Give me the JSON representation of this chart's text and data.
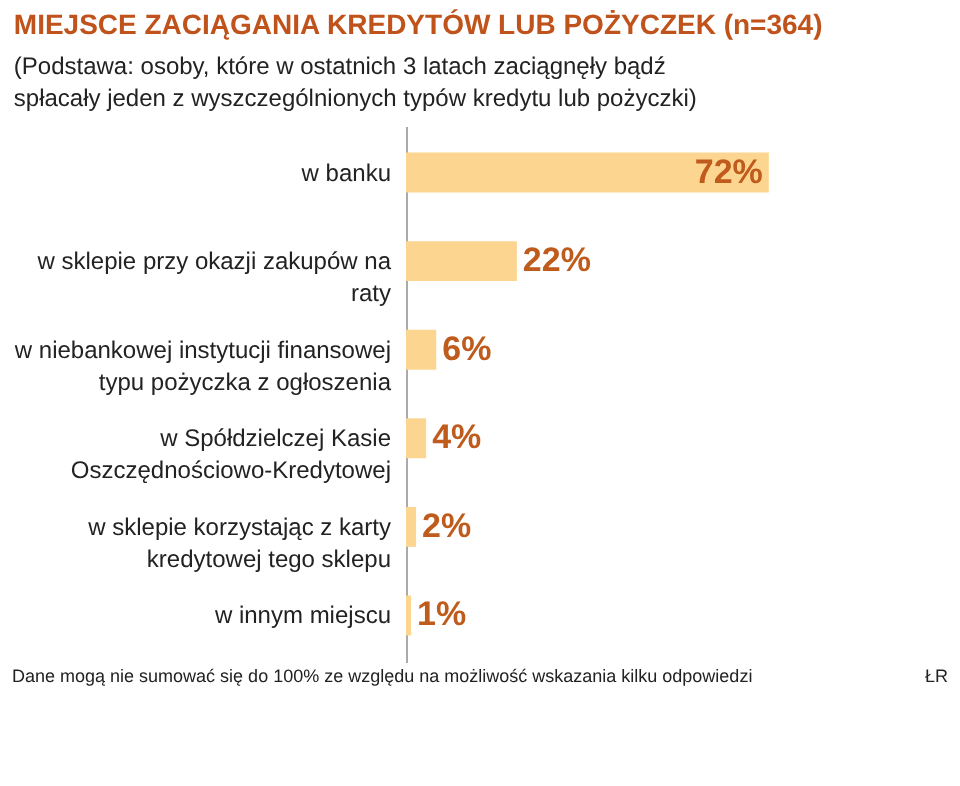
{
  "chart_data": {
    "type": "bar",
    "orientation": "horizontal",
    "title": "MIEJSCE ZACIĄGANIA KREDYTÓW LUB POŻYCZEK (n=364)",
    "subtitle": "(Podstawa: osoby, które w ostatnich 3 latach zaciągnęły bądź spłacały jeden z wyszczególnionych typów kredytu lub pożyczki)",
    "categories": [
      "w banku",
      "w sklepie przy okazji zakupów na raty",
      "w niebankowej instytucji finansowej typu pożyczka z ogłoszenia",
      "w Spółdzielczej Kasie Oszczędnościowo-Kredytowej",
      "w sklepie korzystając z karty kredytowej tego sklepu",
      "w innym miejscu"
    ],
    "values": [
      72,
      22,
      6,
      4,
      2,
      1
    ],
    "color": "#fcd590",
    "value_labels": [
      "72%",
      "22%",
      "6%",
      "4%",
      "2%",
      "1%"
    ],
    "annotations": [
      "Dane mogą nie sumować się do 100% ze względu na możliwość wskazania kilku odpowiedzi",
      "ŁR"
    ]
  }
}
